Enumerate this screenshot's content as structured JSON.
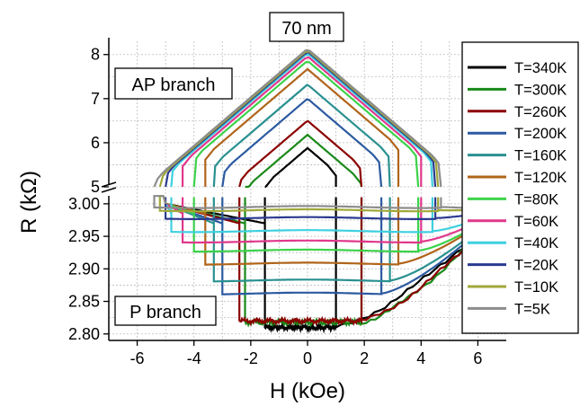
{
  "chart_data": {
    "type": "line",
    "title": "70 nm",
    "xlabel": "H (kOe)",
    "ylabel": "R (kΩ)",
    "xlim": [
      -7,
      7
    ],
    "x_ticks": [
      "-6",
      "-4",
      "-2",
      "0",
      "2",
      "4",
      "6"
    ],
    "y_top_ticks": [
      "5",
      "6",
      "7",
      "8"
    ],
    "y_bottom_ticks": [
      "2.80",
      "2.85",
      "2.90",
      "2.95",
      "3.00"
    ],
    "ylim_top": [
      5,
      8.3
    ],
    "ylim_bottom": [
      2.79,
      3.015
    ],
    "grid": true,
    "legend_position": "right",
    "annotations": {
      "ap_branch": "AP branch",
      "p_branch": "P branch"
    },
    "series": [
      {
        "name": "T=340K",
        "color": "#000000",
        "ap_peak": 5.88,
        "ap_switch_neg": -1.5,
        "ap_switch_pos": 1.0,
        "p_level": 2.81,
        "p_switch_neg": -1.5,
        "p_switch_pos": 1.0
      },
      {
        "name": "T=300K",
        "color": "#1a8a1a",
        "ap_peak": 6.18,
        "ap_switch_neg": -2.2,
        "ap_switch_pos": 1.9,
        "p_level": 2.818,
        "p_switch_neg": -2.2,
        "p_switch_pos": 1.9
      },
      {
        "name": "T=260K",
        "color": "#8b0000",
        "ap_peak": 6.5,
        "ap_switch_neg": -2.4,
        "ap_switch_pos": 1.9,
        "p_level": 2.82,
        "p_switch_neg": -2.4,
        "p_switch_pos": 1.9
      },
      {
        "name": "T=200K",
        "color": "#2c5aa0",
        "ap_peak": 7.0,
        "ap_switch_neg": -3.0,
        "ap_switch_pos": 2.6,
        "p_level": 2.862,
        "p_switch_neg": -3.0,
        "p_switch_pos": 2.6
      },
      {
        "name": "T=160K",
        "color": "#2a9090",
        "ap_peak": 7.32,
        "ap_switch_neg": -3.3,
        "ap_switch_pos": 2.9,
        "p_level": 2.882,
        "p_switch_neg": -3.3,
        "p_switch_pos": 2.9
      },
      {
        "name": "T=120K",
        "color": "#b0641a",
        "ap_peak": 7.67,
        "ap_switch_neg": -3.6,
        "ap_switch_pos": 3.2,
        "p_level": 2.908,
        "p_switch_neg": -3.6,
        "p_switch_pos": 3.2
      },
      {
        "name": "T=80K",
        "color": "#3cd24a",
        "ap_peak": 7.86,
        "ap_switch_neg": -4.0,
        "ap_switch_pos": 3.9,
        "p_level": 2.928,
        "p_switch_neg": -4.0,
        "p_switch_pos": 3.9
      },
      {
        "name": "T=60K",
        "color": "#e0388c",
        "ap_peak": 7.96,
        "ap_switch_neg": -4.4,
        "ap_switch_pos": 4.0,
        "p_level": 2.942,
        "p_switch_neg": -4.4,
        "p_switch_pos": 4.0
      },
      {
        "name": "T=40K",
        "color": "#3ed0e0",
        "ap_peak": 8.03,
        "ap_switch_neg": -4.8,
        "ap_switch_pos": 4.4,
        "p_level": 2.958,
        "p_switch_neg": -4.8,
        "p_switch_pos": 4.4
      },
      {
        "name": "T=20K",
        "color": "#2a3a90",
        "ap_peak": 8.07,
        "ap_switch_neg": -5.0,
        "ap_switch_pos": 4.5,
        "p_level": 2.978,
        "p_switch_neg": -5.0,
        "p_switch_pos": 4.5
      },
      {
        "name": "T=10K",
        "color": "#a0a83a",
        "ap_peak": 8.1,
        "ap_switch_neg": -5.2,
        "ap_switch_pos": 4.6,
        "p_level": 2.99,
        "p_switch_neg": -5.2,
        "p_switch_pos": 4.6
      },
      {
        "name": "T=5K",
        "color": "#8c8c8c",
        "ap_peak": 8.13,
        "ap_switch_neg": -5.4,
        "ap_switch_pos": 4.7,
        "p_level": 2.995,
        "p_switch_neg": -5.4,
        "p_switch_pos": 4.7
      }
    ]
  }
}
